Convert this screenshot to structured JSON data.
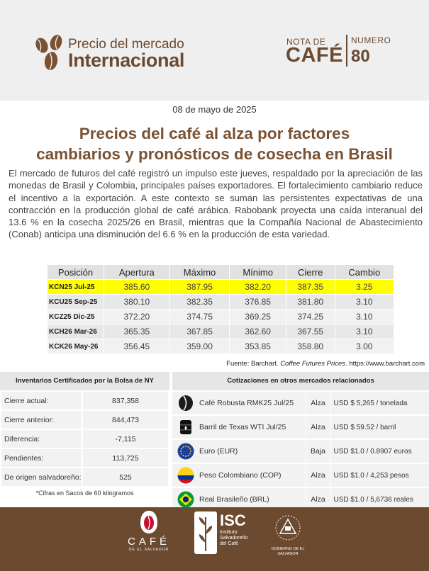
{
  "header": {
    "brand_line1": "Precio del mercado",
    "brand_line2": "Internacional",
    "nota_line1": "NOTA DE",
    "nota_line2": "CAFÉ",
    "numero_label": "NUMERO",
    "numero_value": "80"
  },
  "article": {
    "date": "08 de mayo de 2025",
    "headline_line1": "Precios del café al alza por factores",
    "headline_line2": "cambiarios y pronósticos de cosecha en Brasil",
    "body": "El mercado de futuros del café registró un impulso este jueves, respaldado por la apreciación de las monedas de Brasil y Colombia, principales países exportadores. El fortalecimiento cambiario reduce el incentivo a la exportación. A este contexto se suman las persistentes expectativas de una contracción en la producción global de café arábica. Rabobank proyecta una caída interanual del 13.6 % en la cosecha 2025/26 en Brasil, mientras que la Compañía Nacional de Abastecimiento (Conab) anticipa una disminución del 6.6 % en la producción de esta variedad."
  },
  "futures_table": {
    "headers": [
      "Posición",
      "Apertura",
      "Máximo",
      "Mínimo",
      "Cierre",
      "Cambio"
    ],
    "rows": [
      [
        "KCN25 Jul-25",
        "385.60",
        "387.95",
        "382.20",
        "387.35",
        "3.25"
      ],
      [
        "KCU25 Sep-25",
        "380.10",
        "382.35",
        "376.85",
        "381.80",
        "3.10"
      ],
      [
        "KCZ25 Dic-25",
        "372.20",
        "374.75",
        "369.25",
        "374.25",
        "3.10"
      ],
      [
        "KCH26 Mar-26",
        "365.35",
        "367.85",
        "362.60",
        "367.55",
        "3.10"
      ],
      [
        "KCK26 May-26",
        "356.45",
        "359.00",
        "353.85",
        "358.80",
        "3.00"
      ]
    ],
    "highlight_color": "#ffff00",
    "source_prefix": "Fuente: Barchart. ",
    "source_italic": "Coffee Futures Prices",
    "source_suffix": ". https://www.barchart.com"
  },
  "inventories": {
    "title": "Inventarios Certificados por la Bolsa de NY",
    "rows": [
      {
        "label": "Cierre actual:",
        "value": "837,358"
      },
      {
        "label": "Cierre anterior:",
        "value": "844,473"
      },
      {
        "label": "Diferencia:",
        "value": "-7,115"
      },
      {
        "label": "Pendientes:",
        "value": "113,725"
      },
      {
        "label": "De origen salvadoreño:",
        "value": "525"
      }
    ],
    "note": "*Cifras en Sacos de 60 kilogramos"
  },
  "quotes": {
    "title": "Cotizaciones en otros mercados relacionados",
    "rows": [
      {
        "icon": "coffee-bean-icon",
        "name": "Café Robusta RMK25 Jul/25",
        "trend": "Alza",
        "value": "USD $ 5,265 / tonelada"
      },
      {
        "icon": "oil-barrel-icon",
        "name": "Barril de Texas WTI Jul/25",
        "trend": "Alza",
        "value": "USD $ 59.52 / barril"
      },
      {
        "icon": "eu-flag-icon",
        "name": "Euro (EUR)",
        "trend": "Baja",
        "value": "USD $1.0 / 0.8907 euros"
      },
      {
        "icon": "colombia-flag-icon",
        "name": "Peso Colombiano (COP)",
        "trend": "Alza",
        "value": "USD $1.0 / 4,253 pesos"
      },
      {
        "icon": "brazil-flag-icon",
        "name": "Real Brasileño (BRL)",
        "trend": "Alza",
        "value": "USD $1.0 / 5,6736 reales"
      }
    ]
  },
  "footer": {
    "cafe_main": "CAFÉ",
    "cafe_sub": "DE EL SALVADOR",
    "isc_main": "ISC",
    "isc_sub": "Instituto Salvadoreño del Café",
    "gob_sub": "GOBIERNO DE EL SALVADOR"
  },
  "colors": {
    "brand_brown": "#6b4a30",
    "headline_brown": "#7a5233",
    "header_bg": "#f0efef"
  }
}
